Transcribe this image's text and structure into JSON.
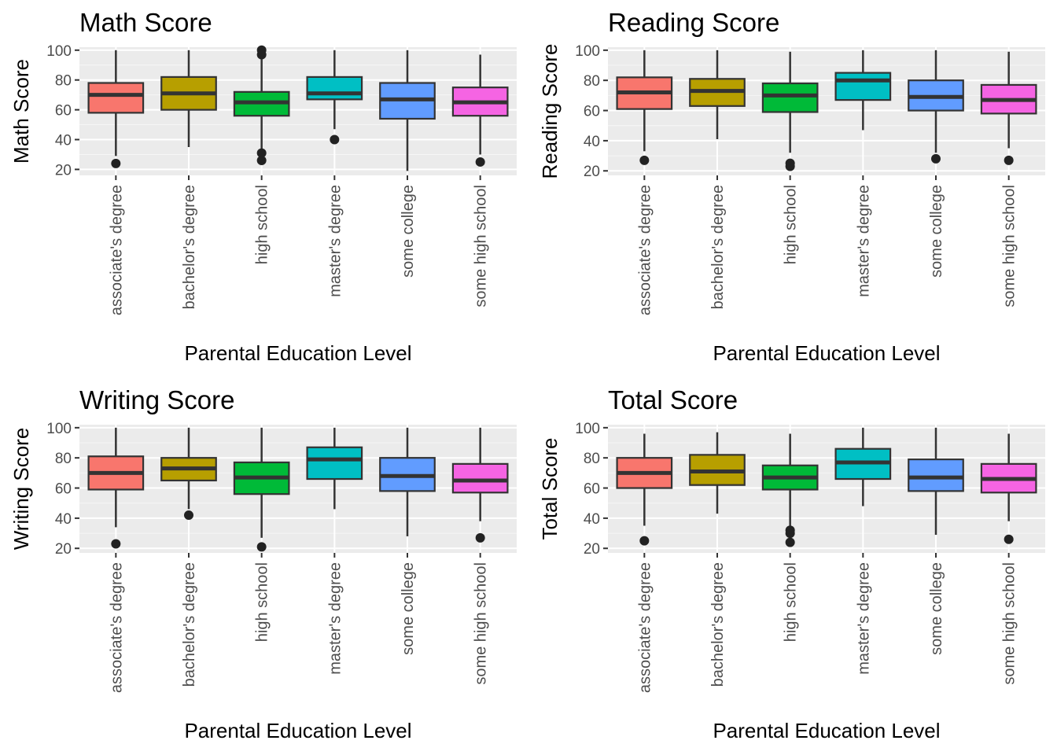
{
  "chart_data": [
    {
      "type": "box",
      "title": "Math Score",
      "xlabel": "Parental Education Level",
      "ylabel": "Math Score",
      "ylim": [
        16,
        102
      ],
      "yticks": [
        "20",
        "40",
        "60",
        "80",
        "100"
      ],
      "grid": "on",
      "categories": [
        "associate's degree",
        "bachelor's degree",
        "high school",
        "master's degree",
        "some college",
        "some high school"
      ],
      "boxes": [
        {
          "min": 29,
          "q1": 58,
          "median": 70,
          "q3": 78,
          "max": 100,
          "outliers": [
            24
          ]
        },
        {
          "min": 35,
          "q1": 60,
          "median": 71,
          "q3": 82,
          "max": 100,
          "outliers": []
        },
        {
          "min": 33,
          "q1": 56,
          "median": 65,
          "q3": 72,
          "max": 95,
          "outliers": [
            26,
            31,
            97,
            100
          ]
        },
        {
          "min": 47,
          "q1": 67,
          "median": 71,
          "q3": 82,
          "max": 100,
          "outliers": [
            40
          ]
        },
        {
          "min": 19,
          "q1": 54,
          "median": 67,
          "q3": 78,
          "max": 100,
          "outliers": []
        },
        {
          "min": 30,
          "q1": 56,
          "median": 65,
          "q3": 75,
          "max": 97,
          "outliers": [
            25
          ]
        }
      ]
    },
    {
      "type": "box",
      "title": "Reading Score",
      "xlabel": "Parental Education Level",
      "ylabel": "Reading Score",
      "ylim": [
        17,
        102
      ],
      "yticks": [
        "20",
        "40",
        "60",
        "80",
        "100"
      ],
      "grid": "on",
      "categories": [
        "associate's degree",
        "bachelor's degree",
        "high school",
        "master's degree",
        "some college",
        "some high school"
      ],
      "boxes": [
        {
          "min": 33,
          "q1": 61,
          "median": 72,
          "q3": 82,
          "max": 100,
          "outliers": [
            27
          ]
        },
        {
          "min": 41,
          "q1": 63,
          "median": 73,
          "q3": 81,
          "max": 100,
          "outliers": []
        },
        {
          "min": 32,
          "q1": 59,
          "median": 70,
          "q3": 78,
          "max": 99,
          "outliers": [
            23,
            25
          ]
        },
        {
          "min": 47,
          "q1": 67,
          "median": 80,
          "q3": 85,
          "max": 100,
          "outliers": []
        },
        {
          "min": 32,
          "q1": 60,
          "median": 69,
          "q3": 80,
          "max": 100,
          "outliers": [
            28
          ]
        },
        {
          "min": 35,
          "q1": 58,
          "median": 67,
          "q3": 77,
          "max": 99,
          "outliers": [
            27
          ]
        }
      ]
    },
    {
      "type": "box",
      "title": "Writing Score",
      "xlabel": "Parental Education Level",
      "ylabel": "Writing Score",
      "ylim": [
        17,
        102
      ],
      "yticks": [
        "20",
        "40",
        "60",
        "80",
        "100"
      ],
      "grid": "on",
      "categories": [
        "associate's degree",
        "bachelor's degree",
        "high school",
        "master's degree",
        "some college",
        "some high school"
      ],
      "boxes": [
        {
          "min": 34,
          "q1": 59,
          "median": 70,
          "q3": 81,
          "max": 100,
          "outliers": [
            23
          ]
        },
        {
          "min": 46,
          "q1": 65,
          "median": 73,
          "q3": 80,
          "max": 100,
          "outliers": [
            42
          ]
        },
        {
          "min": 27,
          "q1": 56,
          "median": 67,
          "q3": 77,
          "max": 100,
          "outliers": [
            21
          ]
        },
        {
          "min": 46,
          "q1": 66,
          "median": 79,
          "q3": 87,
          "max": 100,
          "outliers": []
        },
        {
          "min": 28,
          "q1": 58,
          "median": 68,
          "q3": 80,
          "max": 100,
          "outliers": []
        },
        {
          "min": 38,
          "q1": 57,
          "median": 65,
          "q3": 76,
          "max": 100,
          "outliers": [
            27
          ]
        }
      ]
    },
    {
      "type": "box",
      "title": "Total Score",
      "xlabel": "Parental Education Level",
      "ylabel": "Total Score",
      "ylim": [
        17,
        102
      ],
      "yticks": [
        "20",
        "40",
        "60",
        "80",
        "100"
      ],
      "grid": "on",
      "categories": [
        "associate's degree",
        "bachelor's degree",
        "high school",
        "master's degree",
        "some college",
        "some high school"
      ],
      "boxes": [
        {
          "min": 35,
          "q1": 60,
          "median": 70,
          "q3": 80,
          "max": 96,
          "outliers": [
            25
          ]
        },
        {
          "min": 43,
          "q1": 62,
          "median": 71,
          "q3": 82,
          "max": 97,
          "outliers": []
        },
        {
          "min": 35,
          "q1": 59,
          "median": 67,
          "q3": 75,
          "max": 96,
          "outliers": [
            24,
            30,
            32
          ]
        },
        {
          "min": 48,
          "q1": 66,
          "median": 77,
          "q3": 86,
          "max": 100,
          "outliers": []
        },
        {
          "min": 29,
          "q1": 58,
          "median": 67,
          "q3": 79,
          "max": 100,
          "outliers": []
        },
        {
          "min": 38,
          "q1": 57,
          "median": 66,
          "q3": 76,
          "max": 96,
          "outliers": [
            26
          ]
        }
      ]
    }
  ],
  "colors": {
    "panel_bg": "#EBEBEB",
    "grid_major": "#FFFFFF",
    "box_outline": "#333333",
    "point": "#222222",
    "fills": [
      "#F8766D",
      "#B79F00",
      "#00BA38",
      "#00BFC4",
      "#619CFF",
      "#F564E3"
    ]
  }
}
